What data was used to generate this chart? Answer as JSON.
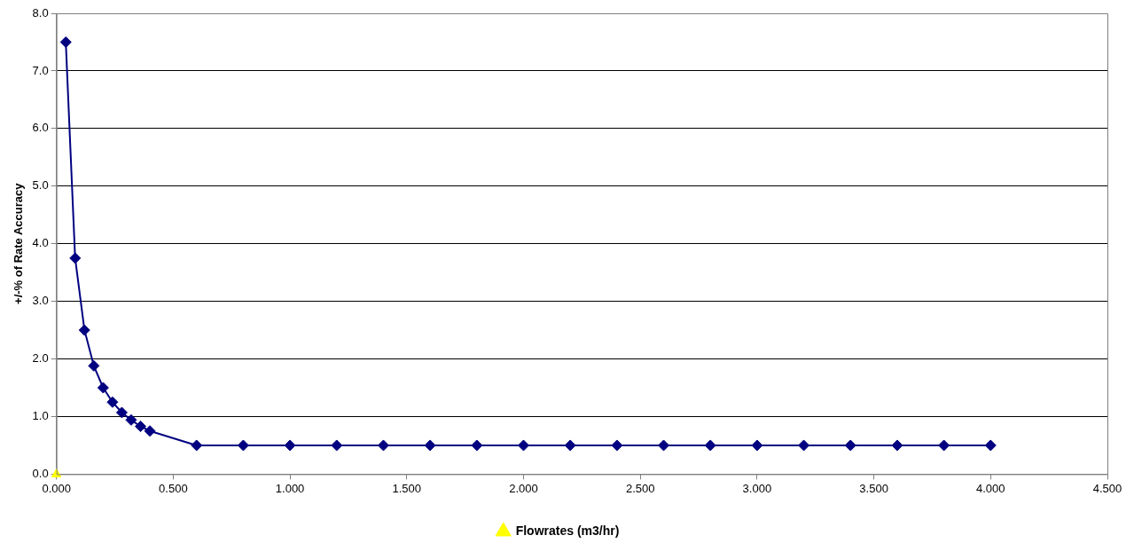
{
  "chart_data": {
    "type": "line",
    "ylabel": "+/-% of Rate Accuracy",
    "series": [
      {
        "color": "#000080",
        "marker": "diamond",
        "x": [
          0.04,
          0.08,
          0.12,
          0.16,
          0.2,
          0.24,
          0.28,
          0.32,
          0.36,
          0.4,
          0.6,
          0.8,
          1.0,
          1.2,
          1.4,
          1.6,
          1.8,
          2.0,
          2.2,
          2.4,
          2.6,
          2.8,
          3.0,
          3.2,
          3.4,
          3.6,
          3.8,
          4.0
        ],
        "values": [
          7.5,
          3.75,
          2.5,
          1.88,
          1.5,
          1.25,
          1.07,
          0.94,
          0.83,
          0.75,
          0.5,
          0.5,
          0.5,
          0.5,
          0.5,
          0.5,
          0.5,
          0.5,
          0.5,
          0.5,
          0.5,
          0.5,
          0.5,
          0.5,
          0.5,
          0.5,
          0.5,
          0.5
        ]
      },
      {
        "name": "Flowrates (m3/hr)",
        "color": "#ffff00",
        "marker": "triangle",
        "x": [
          0
        ],
        "values": [
          0
        ]
      }
    ],
    "xlim": [
      0,
      4.5
    ],
    "xticks": [
      {
        "value": 0,
        "label": "0.000"
      },
      {
        "value": 0.5,
        "label": "0.500"
      },
      {
        "value": 1,
        "label": "1.000"
      },
      {
        "value": 1.5,
        "label": "1.500"
      },
      {
        "value": 2,
        "label": "2.000"
      },
      {
        "value": 2.5,
        "label": "2.500"
      },
      {
        "value": 3,
        "label": "3.000"
      },
      {
        "value": 3.5,
        "label": "3.500"
      },
      {
        "value": 4,
        "label": "4.000"
      },
      {
        "value": 4.5,
        "label": "4.500"
      }
    ],
    "ylim": [
      0,
      8
    ],
    "yticks": [
      {
        "value": 0,
        "label": "0.0"
      },
      {
        "value": 1,
        "label": "1.0"
      },
      {
        "value": 2,
        "label": "2.0"
      },
      {
        "value": 3,
        "label": "3.0"
      },
      {
        "value": 4,
        "label": "4.0"
      },
      {
        "value": 5,
        "label": "5.0"
      },
      {
        "value": 6,
        "label": "6.0"
      },
      {
        "value": 7,
        "label": "7.0"
      },
      {
        "value": 8,
        "label": "8.0"
      }
    ],
    "grid": "y",
    "legend": "bottom"
  }
}
